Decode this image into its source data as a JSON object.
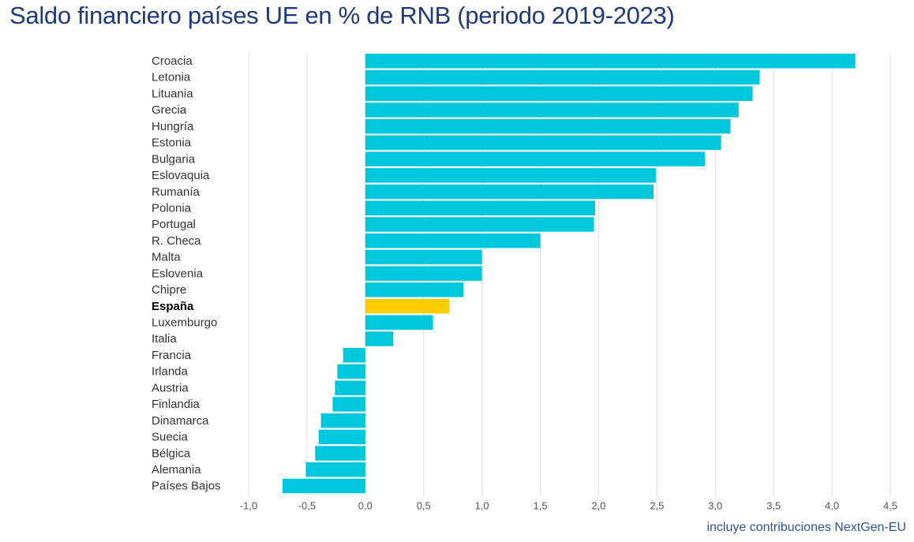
{
  "title": "Saldo financiero países UE en % de RNB (periodo 2019-2023)",
  "note": "incluye contribuciones NextGen-EU",
  "colors": {
    "bar": "#00c8dc",
    "highlight": "#ffcc00",
    "grid": "#e3e3e3",
    "title": "#1f3a7a",
    "note": "#2f5596"
  },
  "chart_data": {
    "type": "bar",
    "orientation": "horizontal",
    "title": "Saldo financiero países UE en % de RNB (periodo 2019-2023)",
    "xlabel": "",
    "ylabel": "",
    "xlim": [
      -1.0,
      4.5
    ],
    "grid": true,
    "highlight": "España",
    "x_ticks": [
      -1.0,
      -0.5,
      0.0,
      0.5,
      1.0,
      1.5,
      2.0,
      2.5,
      3.0,
      3.5,
      4.0,
      4.5
    ],
    "x_tick_labels": [
      "-1,0",
      "-0,5",
      "0,0",
      "0,5",
      "1,0",
      "1,5",
      "2,0",
      "2,5",
      "3,0",
      "3,5",
      "4,0",
      "4,5"
    ],
    "categories": [
      "Croacia",
      "Letonia",
      "Lituania",
      "Grecia",
      "Hungría",
      "Estonia",
      "Bulgaria",
      "Eslovaquia",
      "Rumanía",
      "Polonia",
      "Portugal",
      "R. Checa",
      "Malta",
      "Eslovenia",
      "Chipre",
      "España",
      "Luxemburgo",
      "Italia",
      "Francia",
      "Irlanda",
      "Austria",
      "Finlandia",
      "Dinamarca",
      "Suecia",
      "Bélgica",
      "Alemania",
      "Países Bajos"
    ],
    "values": [
      4.2,
      3.38,
      3.32,
      3.2,
      3.13,
      3.05,
      2.91,
      2.49,
      2.47,
      1.97,
      1.96,
      1.5,
      1.0,
      1.0,
      0.84,
      0.72,
      0.58,
      0.24,
      -0.19,
      -0.24,
      -0.26,
      -0.28,
      -0.38,
      -0.4,
      -0.43,
      -0.51,
      -0.71
    ],
    "annotation": "incluye contribuciones NextGen-EU"
  }
}
